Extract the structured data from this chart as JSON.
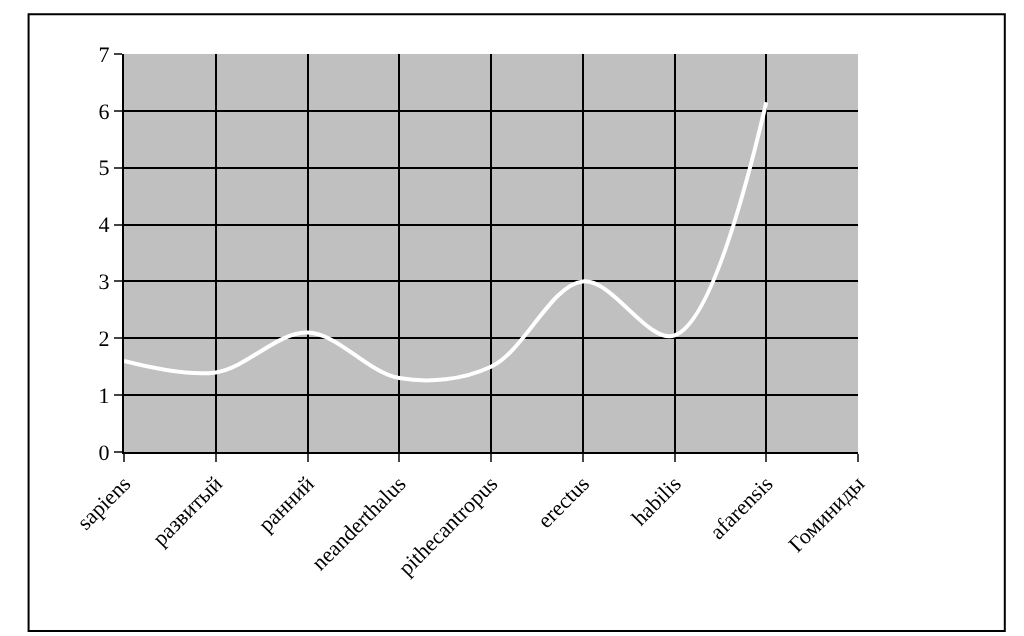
{
  "chart_data": {
    "type": "line",
    "categories": [
      "sapiens",
      "развитый",
      "ранний",
      "neanderthalus",
      "pithecantropus",
      "erectus",
      "habilis",
      "afarensis",
      "Гоминиды"
    ],
    "series": [
      {
        "color": "#ffffff",
        "values": [
          1.6,
          1.4,
          2.1,
          1.3,
          1.5,
          3.0,
          2.05,
          6.15,
          null
        ]
      }
    ],
    "ylim": [
      0,
      7
    ],
    "yticks": [
      0,
      1,
      2,
      3,
      4,
      5,
      6,
      7
    ],
    "grid": true,
    "marker": "none",
    "line_style": "solid"
  }
}
